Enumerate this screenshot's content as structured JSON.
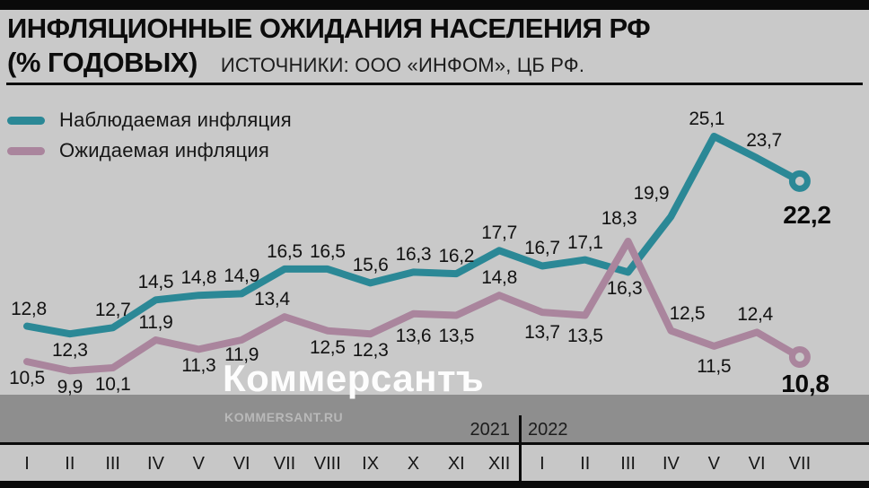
{
  "header": {
    "title_line1": "ИНФЛЯЦИОННЫЕ ОЖИДАНИЯ НАСЕЛЕНИЯ РФ",
    "title_line2": "(% ГОДОВЫХ)",
    "source": "ИСТОЧНИКИ: ООО «ИНФОМ», ЦБ РФ."
  },
  "legend": [
    {
      "label": "Наблюдаемая инфляция",
      "color": "#2b8896"
    },
    {
      "label": "Ожидаемая инфляция",
      "color": "#aa859d"
    }
  ],
  "watermark": {
    "logo": "Коммерсантъ",
    "site": "KOMMERSANT.RU"
  },
  "axis": {
    "years": [
      {
        "label": "2021",
        "months": [
          "I",
          "II",
          "III",
          "IV",
          "V",
          "VI",
          "VII",
          "VIII",
          "IX",
          "X",
          "XI",
          "XII"
        ]
      },
      {
        "label": "2022",
        "months": [
          "I",
          "II",
          "III",
          "IV",
          "V",
          "VI",
          "VII"
        ]
      }
    ]
  },
  "colors": {
    "background": "#c9c9c9",
    "footer_band": "#8e8e8e",
    "observed": "#2b8896",
    "expected": "#aa859d"
  },
  "chart_data": {
    "type": "line",
    "title": "ИНФЛЯЦИОННЫЕ ОЖИДАНИЯ НАСЕЛЕНИЯ РФ (% ГОДОВЫХ)",
    "xlabel": "",
    "ylabel": "% годовых",
    "ylim": [
      9,
      26
    ],
    "grid": false,
    "legend_position": "top-left",
    "decimal_separator": ",",
    "categories": [
      "I",
      "II",
      "III",
      "IV",
      "V",
      "VI",
      "VII",
      "VIII",
      "IX",
      "X",
      "XI",
      "XII",
      "I",
      "II",
      "III",
      "IV",
      "V",
      "VI",
      "VII"
    ],
    "category_years": [
      "2021",
      "2021",
      "2021",
      "2021",
      "2021",
      "2021",
      "2021",
      "2021",
      "2021",
      "2021",
      "2021",
      "2021",
      "2022",
      "2022",
      "2022",
      "2022",
      "2022",
      "2022",
      "2022"
    ],
    "year_split_index": 12,
    "series": [
      {
        "name": "Наблюдаемая инфляция",
        "color": "#2b8896",
        "end_marker": "open-circle",
        "values": [
          12.8,
          12.3,
          12.7,
          14.5,
          14.8,
          14.9,
          16.5,
          16.5,
          15.6,
          16.3,
          16.2,
          17.7,
          16.7,
          17.1,
          16.3,
          19.9,
          25.1,
          23.7,
          22.2
        ],
        "labels": [
          {
            "t": "12,8",
            "p": "a",
            "dx": 2
          },
          {
            "t": "12,3",
            "p": "b"
          },
          {
            "t": "12,7",
            "p": "a"
          },
          {
            "t": "14,5",
            "p": "a"
          },
          {
            "t": "14,8",
            "p": "a"
          },
          {
            "t": "14,9",
            "p": "a"
          },
          {
            "t": "16,5",
            "p": "a"
          },
          {
            "t": "16,5",
            "p": "a"
          },
          {
            "t": "15,6",
            "p": "a"
          },
          {
            "t": "16,3",
            "p": "a"
          },
          {
            "t": "16,2",
            "p": "a"
          },
          {
            "t": "17,7",
            "p": "a"
          },
          {
            "t": "16,7",
            "p": "a"
          },
          {
            "t": "17,1",
            "p": "a"
          },
          {
            "t": "16,3",
            "p": "b",
            "dx": -4
          },
          {
            "t": "19,9",
            "p": "a",
            "dx": -22,
            "dy": 14
          },
          {
            "t": "25,1",
            "p": "a",
            "dx": -8
          },
          {
            "t": "23,7",
            "p": "a",
            "dx": 8
          },
          {
            "t": "22,2",
            "p": "b",
            "dx": 8,
            "dy": 24,
            "b": true
          }
        ]
      },
      {
        "name": "Ожидаемая инфляция",
        "color": "#aa859d",
        "end_marker": "open-circle",
        "values": [
          10.5,
          9.9,
          10.1,
          11.9,
          11.3,
          11.9,
          13.4,
          12.5,
          12.3,
          13.6,
          13.5,
          14.8,
          13.7,
          13.5,
          18.3,
          12.5,
          11.5,
          12.4,
          10.8
        ],
        "labels": [
          {
            "t": "10,5",
            "p": "b"
          },
          {
            "t": "9,9",
            "p": "b"
          },
          {
            "t": "10,1",
            "p": "b"
          },
          {
            "t": "11,9",
            "p": "a"
          },
          {
            "t": "11,3",
            "p": "b"
          },
          {
            "t": "11,9",
            "p": "b",
            "dy": 6
          },
          {
            "t": "13,4",
            "p": "a",
            "dx": -14
          },
          {
            "t": "12,5",
            "p": "b"
          },
          {
            "t": "12,3",
            "p": "b"
          },
          {
            "t": "13,6",
            "p": "b",
            "dy": 14
          },
          {
            "t": "13,5",
            "p": "b",
            "dy": 12
          },
          {
            "t": "14,8",
            "p": "a"
          },
          {
            "t": "13,7",
            "p": "b",
            "dy": 12
          },
          {
            "t": "13,5",
            "p": "b",
            "dy": 12
          },
          {
            "t": "18,3",
            "p": "a",
            "dx": -10,
            "dy": 14
          },
          {
            "t": "12,5",
            "p": "a",
            "dx": 18
          },
          {
            "t": "11,5",
            "p": "b",
            "dy": 12
          },
          {
            "t": "12,4",
            "p": "a",
            "dx": -2
          },
          {
            "t": "10,8",
            "p": "b",
            "dx": 6,
            "dy": 16,
            "b": true
          }
        ]
      }
    ]
  }
}
